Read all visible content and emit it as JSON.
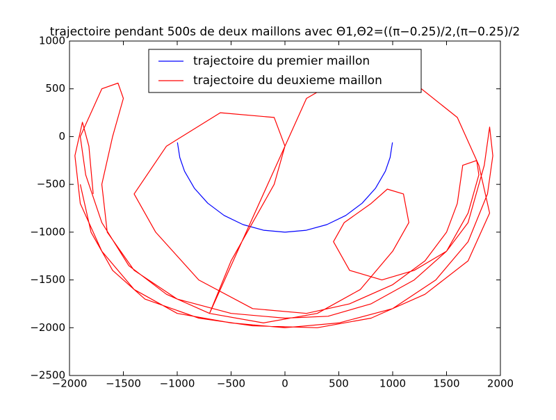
{
  "chart_data": {
    "type": "line",
    "title": "trajectoire pendant 500s de deux maillons avec Θ1,Θ2=((π−0.25)/2,(π−0.25)/2",
    "xlim": [
      -2000,
      2000
    ],
    "ylim": [
      -2500,
      1000
    ],
    "xticks": [
      {
        "value": -2000,
        "label": "−2000"
      },
      {
        "value": -1500,
        "label": "−1500"
      },
      {
        "value": -1000,
        "label": "−1000"
      },
      {
        "value": -500,
        "label": "−500"
      },
      0,
      500,
      1000,
      1500,
      2000
    ],
    "yticks": [
      {
        "value": -2500,
        "label": "−2500"
      },
      {
        "value": -2000,
        "label": "−2000"
      },
      {
        "value": -1500,
        "label": "−1500"
      },
      {
        "value": -1000,
        "label": "−1000"
      },
      {
        "value": -500,
        "label": "−500"
      },
      0,
      500,
      1000
    ],
    "legend": "upper center",
    "series": [
      {
        "name": "trajectoire du premier maillon",
        "color": "#0000ff",
        "x": [
          -998,
          -976,
          -932,
          -841,
          -717,
          -565,
          -389,
          -199,
          0,
          199,
          389,
          565,
          717,
          841,
          932,
          976,
          998
        ],
        "y": [
          -61,
          -219,
          -362,
          -540,
          -697,
          -825,
          -921,
          -980,
          -1000,
          -980,
          -921,
          -825,
          -697,
          -540,
          -362,
          -219,
          -61
        ]
      },
      {
        "name": "trajectoire du deuxieme maillon",
        "color": "#ff0000",
        "x": [
          -1780,
          -1820,
          -1880,
          -1950,
          -1900,
          -1700,
          -1400,
          -1000,
          -500,
          0,
          500,
          1000,
          1400,
          1700,
          1880,
          1930,
          1900,
          1850,
          1700,
          1500,
          1200,
          900,
          600,
          450,
          550,
          800,
          950,
          1100,
          1150,
          1000,
          700,
          300,
          -200,
          -700,
          -1100,
          -1450,
          -1700,
          -1850,
          -1900,
          -1700,
          -1550,
          -1500,
          -1600,
          -1700,
          -1650,
          -1400,
          -1000,
          -500,
          0,
          400,
          800,
          1200,
          1500,
          1700,
          1800,
          1780,
          1650,
          1600,
          1500,
          1300,
          1000,
          600,
          200,
          -300,
          -800,
          -1200,
          -1400,
          -1100,
          -600,
          -100,
          0,
          -100,
          -300,
          -500,
          -700,
          0,
          200,
          600,
          1200,
          1600,
          1800,
          1900,
          1700,
          1300,
          800,
          300,
          -300,
          -800,
          -1300,
          -1600,
          -1800,
          -1900
        ],
        "y": [
          -600,
          -100,
          150,
          -200,
          -700,
          -1200,
          -1600,
          -1850,
          -1950,
          -2000,
          -1950,
          -1800,
          -1500,
          -1100,
          -600,
          -200,
          100,
          -300,
          -900,
          -1200,
          -1400,
          -1500,
          -1400,
          -1100,
          -900,
          -700,
          -550,
          -600,
          -900,
          -1200,
          -1600,
          -1850,
          -1950,
          -1850,
          -1650,
          -1350,
          -900,
          -400,
          0,
          500,
          560,
          400,
          0,
          -500,
          -1000,
          -1400,
          -1700,
          -1850,
          -1900,
          -1880,
          -1750,
          -1500,
          -1200,
          -800,
          -400,
          -250,
          -300,
          -700,
          -1000,
          -1300,
          -1550,
          -1750,
          -1850,
          -1800,
          -1500,
          -1000,
          -600,
          -100,
          250,
          200,
          -100,
          -500,
          -900,
          -1300,
          -1850,
          -100,
          400,
          660,
          560,
          200,
          -300,
          -800,
          -1300,
          -1650,
          -1900,
          -2000,
          -1980,
          -1900,
          -1700,
          -1400,
          -1000,
          -500
        ]
      }
    ]
  }
}
